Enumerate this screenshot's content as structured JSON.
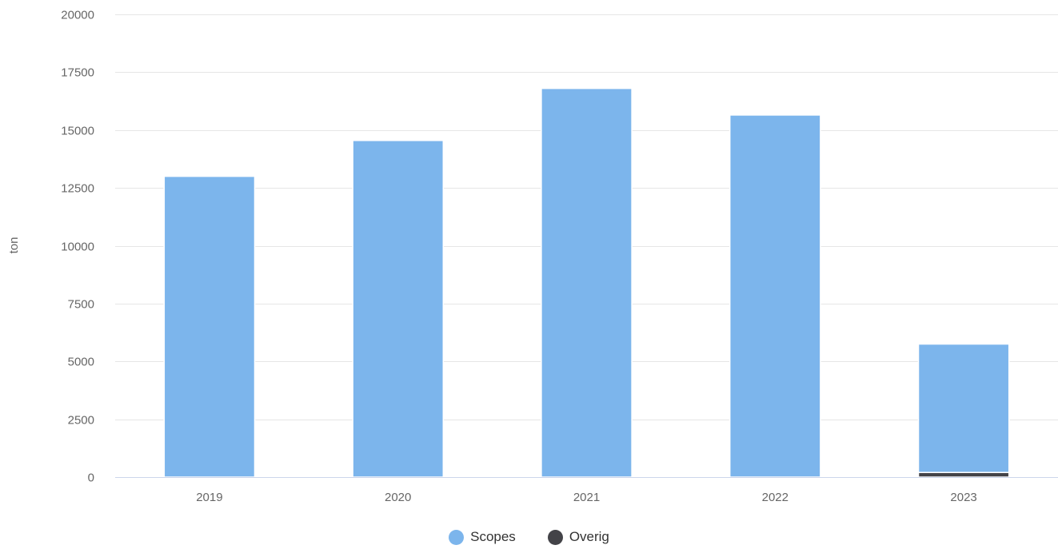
{
  "chart_data": {
    "type": "bar",
    "stacked": true,
    "categories": [
      "2019",
      "2020",
      "2021",
      "2022",
      "2023"
    ],
    "series": [
      {
        "name": "Overig",
        "color": "#434348",
        "values": [
          0,
          0,
          0,
          0,
          200
        ]
      },
      {
        "name": "Scopes",
        "color": "#7cb5ec",
        "values": [
          13000,
          14550,
          16800,
          15650,
          5550
        ]
      }
    ],
    "ylabel": "ton",
    "xlabel": "",
    "ylim": [
      0,
      20000
    ],
    "yticks": [
      0,
      2500,
      5000,
      7500,
      10000,
      12500,
      15000,
      17500,
      20000
    ],
    "grid": true,
    "legend_position": "bottom-center",
    "legend": [
      {
        "name": "Scopes",
        "color": "#7cb5ec"
      },
      {
        "name": "Overig",
        "color": "#434348"
      }
    ]
  }
}
